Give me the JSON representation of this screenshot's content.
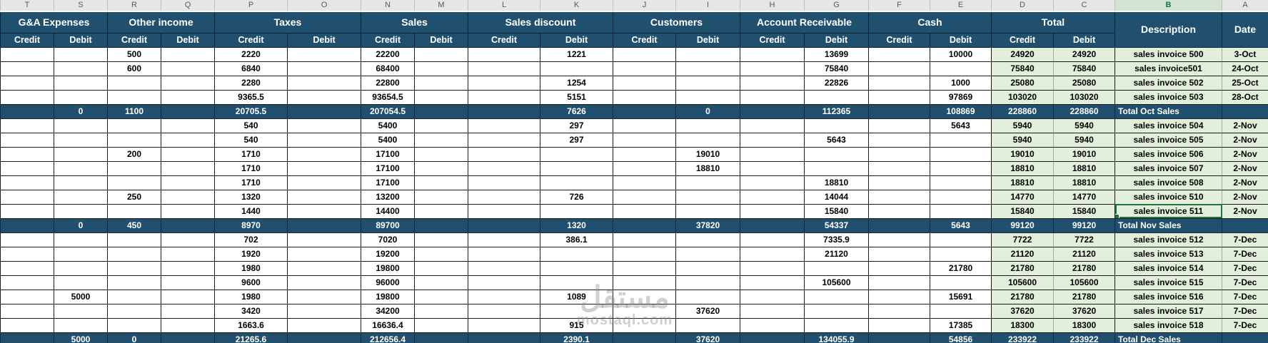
{
  "sheet": {
    "column_letters": [
      "T",
      "S",
      "R",
      "Q",
      "P",
      "O",
      "N",
      "M",
      "L",
      "K",
      "J",
      "I",
      "H",
      "G",
      "F",
      "E",
      "D",
      "C",
      "B",
      "A"
    ],
    "selected_letter": "B",
    "groups": [
      {
        "label": "G&A Expenses"
      },
      {
        "label": "Other income"
      },
      {
        "label": "Taxes"
      },
      {
        "label": "Sales"
      },
      {
        "label": "Sales discount"
      },
      {
        "label": "Customers"
      },
      {
        "label": "Account Receivable"
      },
      {
        "label": "Cash"
      },
      {
        "label": "Total"
      }
    ],
    "subheaders": {
      "credit": "Credit",
      "debit": "Debit"
    },
    "description_header": "Description",
    "date_header": "Date",
    "rows": [
      {
        "type": "data",
        "cells": [
          "",
          "",
          "500",
          "",
          "2220",
          "",
          "22200",
          "",
          "",
          "1221",
          "",
          "",
          "",
          "13699",
          "",
          "10000",
          "24920",
          "24920",
          "sales invoice 500",
          "3-Oct"
        ]
      },
      {
        "type": "data",
        "cells": [
          "",
          "",
          "600",
          "",
          "6840",
          "",
          "68400",
          "",
          "",
          "",
          "",
          "",
          "",
          "75840",
          "",
          "",
          "75840",
          "75840",
          "sales invoice501",
          "24-Oct"
        ]
      },
      {
        "type": "data",
        "cells": [
          "",
          "",
          "",
          "",
          "2280",
          "",
          "22800",
          "",
          "",
          "1254",
          "",
          "",
          "",
          "22826",
          "",
          "1000",
          "25080",
          "25080",
          "sales invoice 502",
          "25-Oct"
        ]
      },
      {
        "type": "data",
        "cells": [
          "",
          "",
          "",
          "",
          "9365.5",
          "",
          "93654.5",
          "",
          "",
          "5151",
          "",
          "",
          "",
          "",
          "",
          "97869",
          "103020",
          "103020",
          "sales invoice 503",
          "28-Oct"
        ]
      },
      {
        "type": "total",
        "cells": [
          "",
          "0",
          "1100",
          "",
          "20705.5",
          "",
          "207054.5",
          "",
          "",
          "7626",
          "",
          "0",
          "",
          "112365",
          "",
          "108869",
          "228860",
          "228860",
          "Total Oct Sales",
          ""
        ]
      },
      {
        "type": "data",
        "cells": [
          "",
          "",
          "",
          "",
          "540",
          "",
          "5400",
          "",
          "",
          "297",
          "",
          "",
          "",
          "",
          "",
          "5643",
          "5940",
          "5940",
          "sales invoice 504",
          "2-Nov"
        ]
      },
      {
        "type": "data",
        "cells": [
          "",
          "",
          "",
          "",
          "540",
          "",
          "5400",
          "",
          "",
          "297",
          "",
          "",
          "",
          "5643",
          "",
          "",
          "5940",
          "5940",
          "sales invoice 505",
          "2-Nov"
        ]
      },
      {
        "type": "data",
        "cells": [
          "",
          "",
          "200",
          "",
          "1710",
          "",
          "17100",
          "",
          "",
          "",
          "",
          "19010",
          "",
          "",
          "",
          "",
          "19010",
          "19010",
          "sales invoice 506",
          "2-Nov"
        ]
      },
      {
        "type": "data",
        "cells": [
          "",
          "",
          "",
          "",
          "1710",
          "",
          "17100",
          "",
          "",
          "",
          "",
          "18810",
          "",
          "",
          "",
          "",
          "18810",
          "18810",
          "sales invoice 507",
          "2-Nov"
        ]
      },
      {
        "type": "data",
        "cells": [
          "",
          "",
          "",
          "",
          "1710",
          "",
          "17100",
          "",
          "",
          "",
          "",
          "",
          "",
          "18810",
          "",
          "",
          "18810",
          "18810",
          "sales invoice 508",
          "2-Nov"
        ]
      },
      {
        "type": "data",
        "cells": [
          "",
          "",
          "250",
          "",
          "1320",
          "",
          "13200",
          "",
          "",
          "726",
          "",
          "",
          "",
          "14044",
          "",
          "",
          "14770",
          "14770",
          "sales invoice 510",
          "2-Nov"
        ]
      },
      {
        "type": "data",
        "cells": [
          "",
          "",
          "",
          "",
          "1440",
          "",
          "14400",
          "",
          "",
          "",
          "",
          "",
          "",
          "15840",
          "",
          "",
          "15840",
          "15840",
          "sales invoice 511",
          "2-Nov"
        ],
        "selected": true
      },
      {
        "type": "total",
        "cells": [
          "",
          "0",
          "450",
          "",
          "8970",
          "",
          "89700",
          "",
          "",
          "1320",
          "",
          "37820",
          "",
          "54337",
          "",
          "5643",
          "99120",
          "99120",
          "Total Nov Sales",
          ""
        ]
      },
      {
        "type": "data",
        "cells": [
          "",
          "",
          "",
          "",
          "702",
          "",
          "7020",
          "",
          "",
          "386.1",
          "",
          "",
          "",
          "7335.9",
          "",
          "",
          "7722",
          "7722",
          "sales invoice 512",
          "7-Dec"
        ]
      },
      {
        "type": "data",
        "cells": [
          "",
          "",
          "",
          "",
          "1920",
          "",
          "19200",
          "",
          "",
          "",
          "",
          "",
          "",
          "21120",
          "",
          "",
          "21120",
          "21120",
          "sales invoice 513",
          "7-Dec"
        ]
      },
      {
        "type": "data",
        "cells": [
          "",
          "",
          "",
          "",
          "1980",
          "",
          "19800",
          "",
          "",
          "",
          "",
          "",
          "",
          "",
          "",
          "21780",
          "21780",
          "21780",
          "sales invoice 514",
          "7-Dec"
        ]
      },
      {
        "type": "data",
        "cells": [
          "",
          "",
          "",
          "",
          "9600",
          "",
          "96000",
          "",
          "",
          "",
          "",
          "",
          "",
          "105600",
          "",
          "",
          "105600",
          "105600",
          "sales invoice 515",
          "7-Dec"
        ]
      },
      {
        "type": "data",
        "cells": [
          "",
          "5000",
          "",
          "",
          "1980",
          "",
          "19800",
          "",
          "",
          "1089",
          "",
          "",
          "",
          "",
          "",
          "15691",
          "21780",
          "21780",
          "sales invoice 516",
          "7-Dec"
        ]
      },
      {
        "type": "data",
        "cells": [
          "",
          "",
          "",
          "",
          "3420",
          "",
          "34200",
          "",
          "",
          "",
          "",
          "37620",
          "",
          "",
          "",
          "",
          "37620",
          "37620",
          "sales invoice 517",
          "7-Dec"
        ]
      },
      {
        "type": "data",
        "cells": [
          "",
          "",
          "",
          "",
          "1663.6",
          "",
          "16636.4",
          "",
          "",
          "915",
          "",
          "",
          "",
          "",
          "",
          "17385",
          "18300",
          "18300",
          "sales invoice 518",
          "7-Dec"
        ]
      },
      {
        "type": "total",
        "cells": [
          "",
          "5000",
          "0",
          "",
          "21265.6",
          "",
          "212656.4",
          "",
          "",
          "2390.1",
          "",
          "37620",
          "",
          "134055.9",
          "",
          "54856",
          "233922",
          "233922",
          "Total Dec Sales",
          ""
        ]
      }
    ]
  },
  "watermark": {
    "arabic": "مستقل",
    "latin": "mostaql.com"
  },
  "colors": {
    "header_navy": "#21506f",
    "total_row_navy": "#21506f",
    "green_fill": "#e2efda",
    "selection_green": "#217346",
    "letters_strip": "#e7e6e6"
  }
}
